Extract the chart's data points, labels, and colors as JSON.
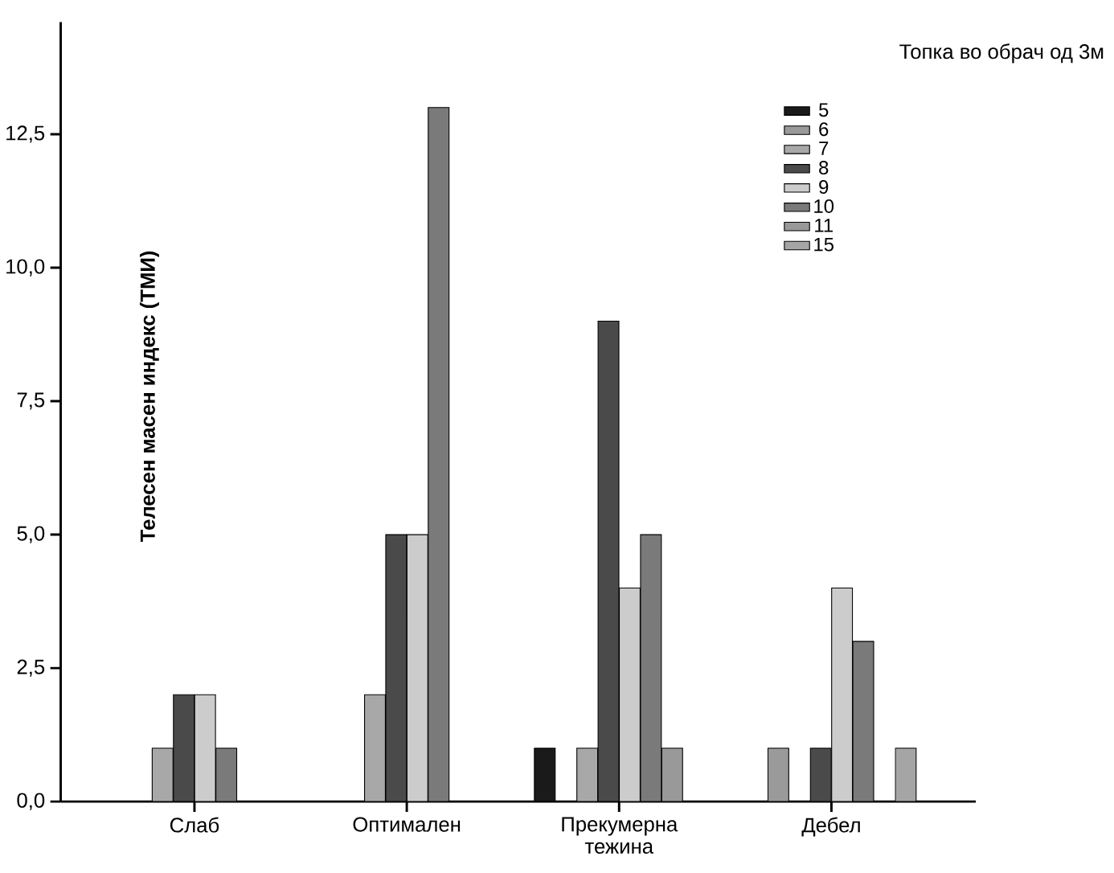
{
  "chart_data": {
    "type": "bar",
    "ylabel": "Телесен масен индекс (ТМИ)",
    "legend_title": "Топка во обрач од 3м",
    "categories": [
      "Слаб",
      "Оптимален",
      "Прекумерна тежина",
      "Дебел"
    ],
    "series": [
      {
        "name": "5",
        "color": "#1a1a1a",
        "values": [
          null,
          null,
          1,
          null
        ]
      },
      {
        "name": "6",
        "color": "#9a9a9a",
        "values": [
          null,
          null,
          null,
          1
        ]
      },
      {
        "name": "7",
        "color": "#a8a8a8",
        "values": [
          1,
          2,
          1,
          null
        ]
      },
      {
        "name": "8",
        "color": "#4a4a4a",
        "values": [
          2,
          5,
          9,
          1
        ]
      },
      {
        "name": "9",
        "color": "#cccccc",
        "values": [
          2,
          5,
          4,
          4
        ]
      },
      {
        "name": "10",
        "color": "#7a7a7a",
        "values": [
          1,
          13,
          5,
          3
        ]
      },
      {
        "name": "11",
        "color": "#999999",
        "values": [
          null,
          null,
          1,
          null
        ]
      },
      {
        "name": "15",
        "color": "#a5a5a5",
        "values": [
          null,
          null,
          null,
          1
        ]
      }
    ],
    "ylim": [
      0,
      14.6
    ],
    "yticks": [
      {
        "value": 0,
        "label": "0,0"
      },
      {
        "value": 2.5,
        "label": "2,5"
      },
      {
        "value": 5,
        "label": "5,0"
      },
      {
        "value": 7.5,
        "label": "7,5"
      },
      {
        "value": 10,
        "label": "10,0"
      },
      {
        "value": 12.5,
        "label": "12,5"
      }
    ],
    "legend": "top right",
    "grid": false
  }
}
